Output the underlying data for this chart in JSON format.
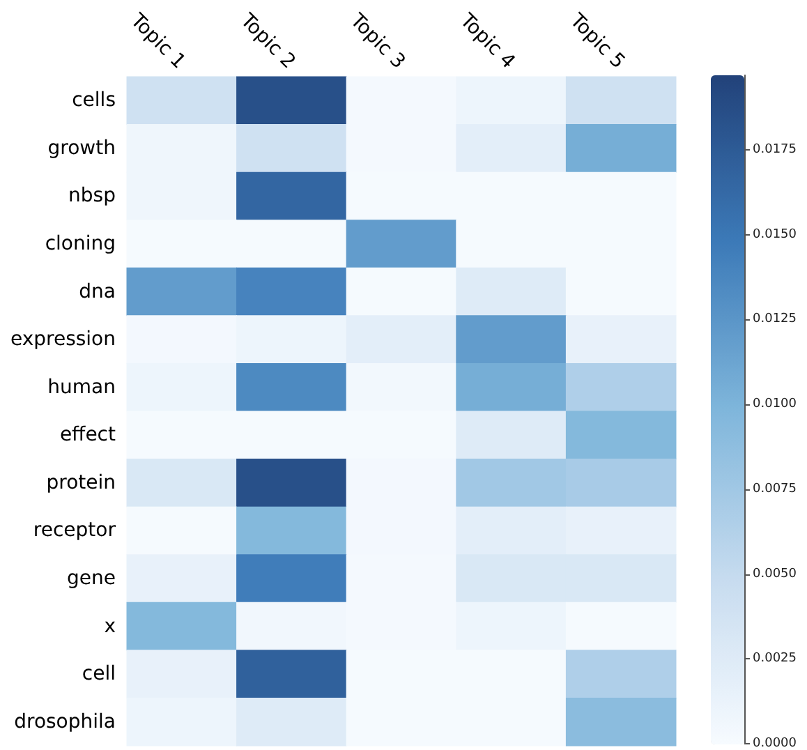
{
  "chart_data": {
    "type": "heatmap",
    "categories": [
      "Topic 1",
      "Topic 2",
      "Topic 3",
      "Topic 4",
      "Topic 5"
    ],
    "y_categories": [
      "cells",
      "growth",
      "nbsp",
      "cloning",
      "dna",
      "expression",
      "human",
      "effect",
      "protein",
      "receptor",
      "gene",
      "x",
      "cell",
      "drosophila"
    ],
    "cells": [
      [
        0.004,
        0.0185,
        0.0003,
        0.001,
        0.004
      ],
      [
        0.0008,
        0.004,
        0.0003,
        0.002,
        0.0105
      ],
      [
        0.0008,
        0.0165,
        0.0002,
        0.0002,
        0.0002
      ],
      [
        0.0002,
        0.0002,
        0.012,
        0.0002,
        0.0002
      ],
      [
        0.012,
        0.014,
        0.0002,
        0.0025,
        0.0002
      ],
      [
        0.0004,
        0.001,
        0.002,
        0.012,
        0.0015
      ],
      [
        0.001,
        0.0135,
        0.0005,
        0.0105,
        0.0065
      ],
      [
        0.0002,
        0.0002,
        0.0002,
        0.0025,
        0.0095
      ],
      [
        0.003,
        0.0185,
        0.0004,
        0.0075,
        0.007
      ],
      [
        0.0002,
        0.0095,
        0.0004,
        0.002,
        0.0015
      ],
      [
        0.0015,
        0.0145,
        0.0003,
        0.003,
        0.003
      ],
      [
        0.0095,
        0.0006,
        0.0003,
        0.001,
        0.0002
      ],
      [
        0.0015,
        0.017,
        0.0002,
        0.0002,
        0.0065
      ],
      [
        0.001,
        0.0025,
        0.0002,
        0.0002,
        0.009
      ]
    ],
    "clim": [
      0,
      0.0197
    ],
    "cticks": [
      {
        "value": 0,
        "label": "0.0000"
      },
      {
        "value": 0.0025,
        "label": "0.0025"
      },
      {
        "value": 0.005,
        "label": "0.0050"
      },
      {
        "value": 0.0075,
        "label": "0.0075"
      },
      {
        "value": 0.01,
        "label": "0.0100"
      },
      {
        "value": 0.0125,
        "label": "0.0125"
      },
      {
        "value": 0.015,
        "label": "0.0150"
      },
      {
        "value": 0.0175,
        "label": "0.0175"
      }
    ]
  }
}
